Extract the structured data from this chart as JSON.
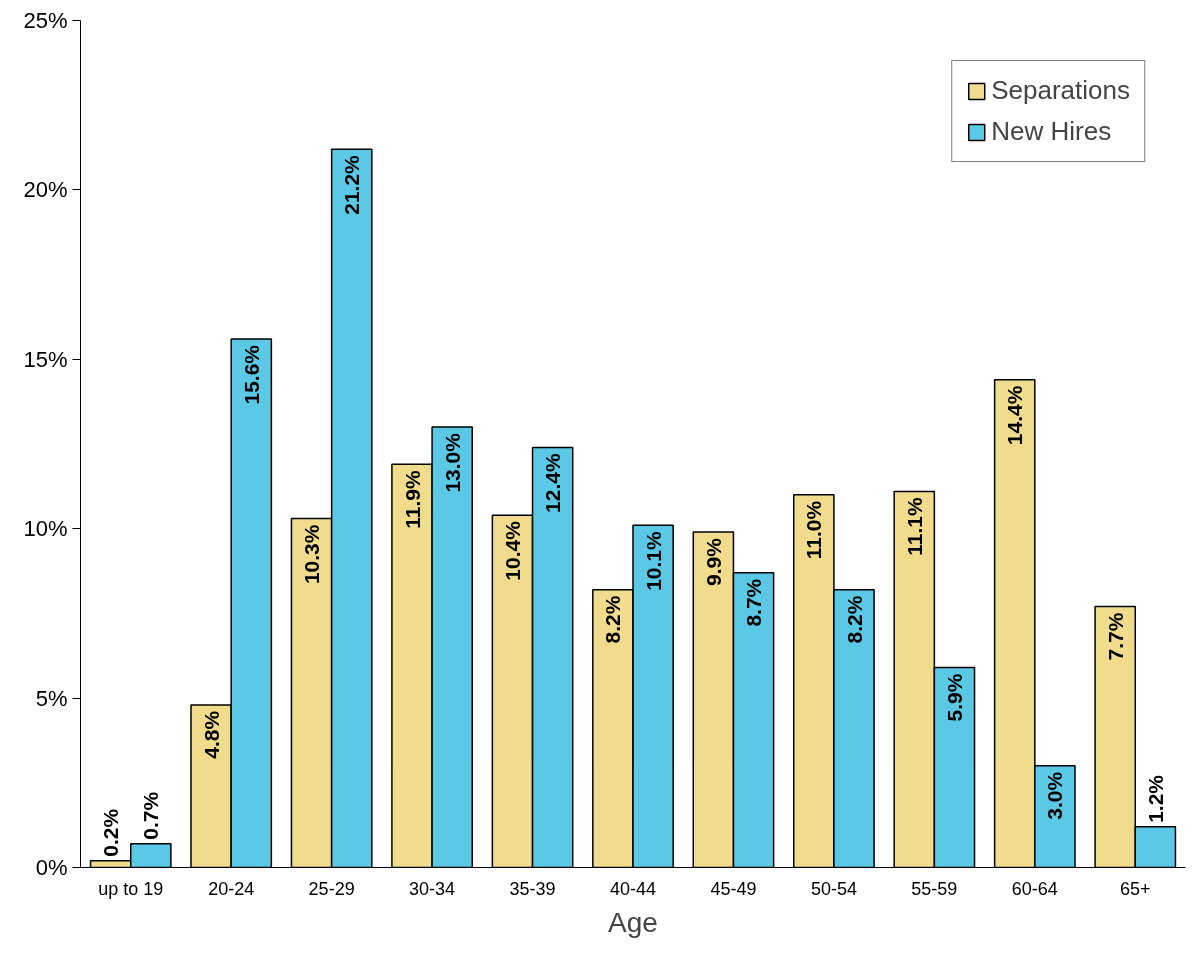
{
  "chart_data": {
    "type": "bar",
    "xlabel": "Age",
    "categories": [
      "up to 19",
      "20-24",
      "25-29",
      "30-34",
      "35-39",
      "40-44",
      "45-49",
      "50-54",
      "55-59",
      "60-64",
      "65+"
    ],
    "series": [
      {
        "name": "Separations",
        "color": "#f0dc8c",
        "values": [
          0.2,
          4.8,
          10.3,
          11.9,
          10.4,
          8.2,
          9.9,
          11.0,
          11.1,
          14.4,
          7.7
        ],
        "value_labels": [
          "0.2%",
          "4.8%",
          "10.3%",
          "11.9%",
          "10.4%",
          "8.2%",
          "9.9%",
          "11.0%",
          "11.1%",
          "14.4%",
          "7.7%"
        ]
      },
      {
        "name": "New Hires",
        "color": "#5bc8e6",
        "values": [
          0.7,
          15.6,
          21.2,
          13.0,
          12.4,
          10.1,
          8.7,
          8.2,
          5.9,
          3.0,
          1.2
        ],
        "value_labels": [
          "0.7%",
          "15.6%",
          "21.2%",
          "13.0%",
          "12.4%",
          "10.1%",
          "8.7%",
          "8.2%",
          "5.9%",
          "3.0%",
          "1.2%"
        ]
      }
    ],
    "ylim": [
      0,
      25
    ],
    "yticks": [
      {
        "value": 0,
        "label": "0%"
      },
      {
        "value": 5,
        "label": "5%"
      },
      {
        "value": 10,
        "label": "10%"
      },
      {
        "value": 15,
        "label": "15%"
      },
      {
        "value": 20,
        "label": "20%"
      },
      {
        "value": 25,
        "label": "25%"
      }
    ],
    "grid": false,
    "legend": "top right"
  }
}
